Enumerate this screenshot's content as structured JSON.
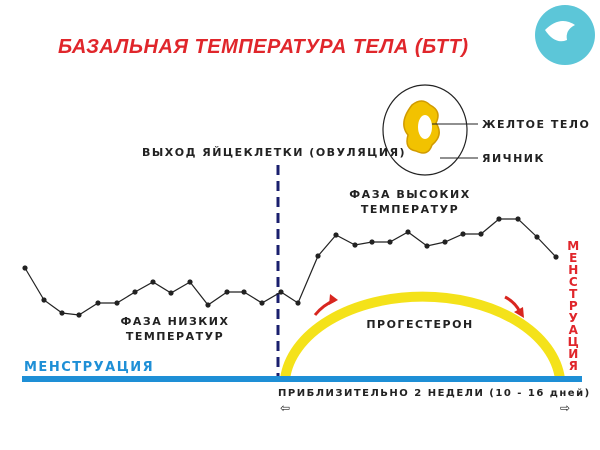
{
  "header": {
    "title": "БАЗАЛЬНАЯ ТЕМПЕРАТУРА ТЕЛА (БТТ)"
  },
  "labels": {
    "ovulation": "ВЫХОД ЯЙЦЕКЛЕТКИ (ОВУЛЯЦИЯ)",
    "corpus_luteum": "ЖЕЛТОЕ ТЕЛО",
    "ovary": "ЯИЧНИК",
    "high_phase": [
      "ФАЗА ВЫСОКИХ",
      "ТЕМПЕРАТУР"
    ],
    "low_phase": [
      "ФАЗА НИЗКИХ",
      "ТЕМПЕРАТУР"
    ],
    "progesterone": "ПРОГЕСТЕРОН",
    "menstruation_left": "МЕНСТРУАЦИЯ",
    "menstruation_right": "МЕНСТРУАЦИЯ",
    "duration": "ПРИБЛИЗИТЕЛЬНО 2 НЕДЕЛИ (10 - 16 дней)"
  }
}
